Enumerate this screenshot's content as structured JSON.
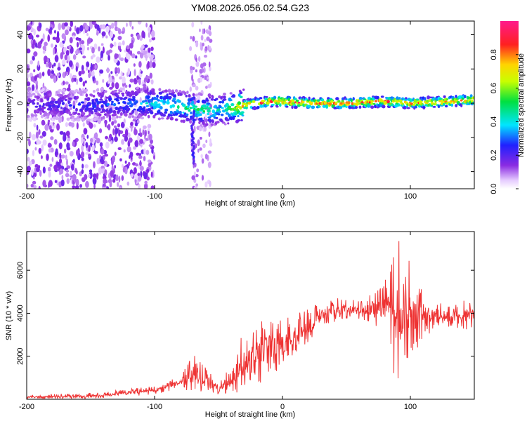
{
  "title": "YM08.2026.056.02.54.G23",
  "chart_data": [
    {
      "type": "heatmap",
      "name": "spectrogram",
      "xlabel": "Height of straight line (km)",
      "ylabel": "Frequency (Hz)",
      "xlim": [
        -200,
        150
      ],
      "ylim": [
        -50,
        48
      ],
      "xticks": [
        -200,
        -100,
        0,
        100
      ],
      "xtick_labels": [
        "-200",
        "-100",
        "0",
        "100"
      ],
      "yticks": [
        -40,
        -20,
        0,
        20,
        40
      ],
      "ytick_labels": [
        "-40",
        "-20",
        "0",
        "20",
        "40"
      ],
      "colorbar": {
        "label": "Normalized spectral amplitude",
        "range": [
          0,
          1
        ],
        "ticks": [
          0.0,
          0.2,
          0.4,
          0.6,
          0.8
        ],
        "tick_labels": [
          "0.0",
          "0.2",
          "0.4",
          "0.6",
          "0.8"
        ]
      },
      "ridge": {
        "x": [
          -200,
          -150,
          -120,
          -100,
          -80,
          -60,
          -50,
          -40,
          -30,
          -20,
          -10,
          0,
          20,
          50,
          80,
          100,
          130,
          150
        ],
        "frequency_hz": [
          -1,
          -1,
          0,
          0,
          -2,
          -4,
          -4,
          -3,
          -1,
          0,
          1,
          1,
          0,
          0,
          1,
          0,
          1,
          2
        ],
        "peak_amplitude": [
          0.2,
          0.3,
          0.35,
          0.45,
          0.5,
          0.55,
          0.45,
          0.6,
          0.85,
          0.9,
          0.9,
          0.95,
          0.95,
          0.95,
          0.9,
          0.9,
          0.9,
          0.9
        ]
      },
      "noise_region_km": [
        -200,
        -100
      ],
      "secondary_streak": {
        "x": -70,
        "frequency_hz": [
          -35,
          -5
        ]
      }
    },
    {
      "type": "line",
      "name": "snr",
      "xlabel": "Height of straight line (km)",
      "ylabel": "SNR (10 * v/v)",
      "xlim": [
        -200,
        150
      ],
      "ylim": [
        0,
        7800
      ],
      "xticks": [
        -200,
        -100,
        0,
        100
      ],
      "xtick_labels": [
        "-200",
        "-100",
        "0",
        "100"
      ],
      "yticks": [
        2000,
        4000,
        6000
      ],
      "ytick_labels": [
        "2000",
        "4000",
        "6000"
      ],
      "color": "#ee3333",
      "series": [
        {
          "name": "SNR",
          "x": [
            -200,
            -150,
            -120,
            -100,
            -90,
            -80,
            -70,
            -60,
            -50,
            -40,
            -35,
            -30,
            -20,
            -10,
            0,
            10,
            20,
            30,
            40,
            50,
            60,
            70,
            80,
            90,
            100,
            110,
            120,
            130,
            140,
            150
          ],
          "values": [
            100,
            150,
            300,
            400,
            600,
            800,
            1100,
            900,
            400,
            900,
            1300,
            1700,
            2100,
            2500,
            2500,
            2900,
            3300,
            3900,
            4100,
            4200,
            4100,
            4200,
            4200,
            3900,
            3900,
            3900,
            3900,
            3800,
            3900,
            3900
          ],
          "envelope": [
            200,
            300,
            500,
            600,
            900,
            1000,
            2100,
            1500,
            700,
            1800,
            2600,
            3100,
            3700,
            4100,
            3800,
            3900,
            4300,
            4600,
            4700,
            4700,
            4600,
            5000,
            5500,
            7800,
            6300,
            5200,
            4500,
            4400,
            4600,
            4700
          ]
        }
      ]
    }
  ]
}
